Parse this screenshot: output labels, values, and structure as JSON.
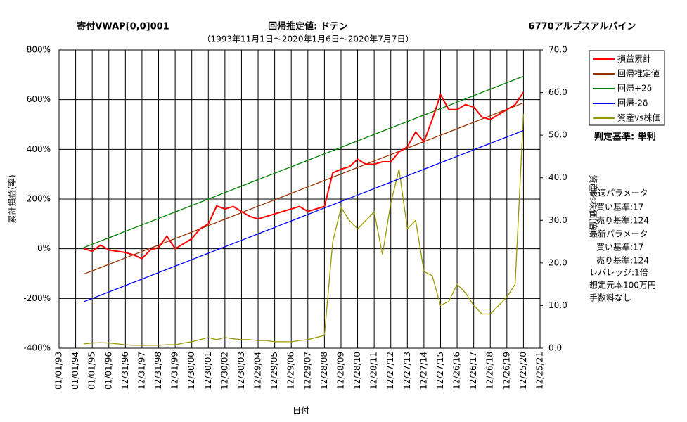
{
  "chart_data": {
    "type": "line",
    "title": "寄付VWAP[0,0]001",
    "subtitle": "回帰推定値: ドテン",
    "stock": "6770アルプスアルパイン",
    "period": "（1993年11月1日～2020年1月6日～2020年7月7日）",
    "x_label": "日付",
    "y_label": "累計損益(率)",
    "y2_label": "資産vs株価(倍)",
    "notes": [
      "判定基準: 単利",
      "最適パラメータ",
      "買い基準:17",
      "売り基準:124",
      "最新パラメータ",
      "買い基準:17",
      "売り基準:124",
      "レバレッジ:1倍",
      "想定元本100万円",
      "手数料なし"
    ],
    "categories": [
      "01/01/93",
      null,
      "01/01/94",
      null,
      "01/01/95",
      null,
      "01/01/96",
      null,
      "12/31/96",
      null,
      "12/31/97",
      null,
      "12/31/98",
      null,
      "12/31/99",
      null,
      "12/30/00",
      null,
      "12/30/01",
      null,
      "12/30/02",
      null,
      "12/30/03",
      null,
      "12/29/04",
      null,
      "12/29/05",
      null,
      "12/29/06",
      null,
      "12/29/07",
      null,
      "12/28/08",
      null,
      "12/28/09",
      null,
      "12/28/10",
      null,
      "12/28/11",
      null,
      "12/27/12",
      null,
      "12/27/13",
      null,
      "12/27/14",
      null,
      "12/27/15",
      null,
      "12/26/16",
      null,
      "12/26/17",
      null,
      "12/26/18",
      null,
      "12/26/19",
      null,
      "12/25/20",
      null,
      "12/25/21"
    ],
    "ylim": [
      -400,
      800
    ],
    "yticks": [
      {
        "value": -400,
        "label": "-400%"
      },
      {
        "value": -200,
        "label": "-200%"
      },
      {
        "value": 0,
        "label": "0%"
      },
      {
        "value": 200,
        "label": "200%"
      },
      {
        "value": 400,
        "label": "400%"
      },
      {
        "value": 600,
        "label": "600%"
      },
      {
        "value": 800,
        "label": "800%"
      }
    ],
    "y2lim": [
      0,
      70
    ],
    "y2ticks": [
      {
        "value": 0,
        "label": "0.0"
      },
      {
        "value": 10,
        "label": "10.0"
      },
      {
        "value": 20,
        "label": "20.0"
      },
      {
        "value": 30,
        "label": "30.0"
      },
      {
        "value": 40,
        "label": "40.0"
      },
      {
        "value": 50,
        "label": "50.0"
      },
      {
        "value": 60,
        "label": "60.0"
      },
      {
        "value": 70,
        "label": "70.0"
      }
    ],
    "grid": true,
    "series": [
      {
        "name": "損益累計",
        "color": "#ff0000",
        "values": [
          null,
          null,
          null,
          0,
          -10,
          15,
          -5,
          -10,
          -15,
          -25,
          -40,
          -5,
          5,
          50,
          0,
          20,
          40,
          80,
          100,
          172,
          160,
          170,
          150,
          130,
          120,
          130,
          140,
          150,
          160,
          170,
          150,
          160,
          170,
          305,
          320,
          330,
          360,
          340,
          340,
          350,
          350,
          390,
          410,
          470,
          430,
          520,
          620,
          560,
          560,
          580,
          570,
          530,
          520,
          540,
          560,
          580,
          630,
          null,
          null
        ]
      },
      {
        "name": "回帰推定値",
        "color": "#993300",
        "values": [
          null,
          null,
          null,
          -102,
          -89,
          -76,
          -63,
          -50,
          -37,
          -24,
          -11,
          2,
          15,
          28,
          41,
          54,
          67,
          80,
          93,
          106,
          119,
          132,
          145,
          158,
          171,
          184,
          197,
          210,
          223,
          236,
          249,
          262,
          275,
          288,
          301,
          314,
          327,
          340,
          353,
          366,
          379,
          392,
          405,
          418,
          431,
          444,
          457,
          470,
          483,
          496,
          509,
          522,
          535,
          548,
          561,
          574,
          587,
          null,
          null
        ]
      },
      {
        "name": "回帰+2δ",
        "color": "#008000",
        "values": [
          null,
          null,
          null,
          5,
          18,
          31,
          44,
          57,
          70,
          83,
          96,
          109,
          122,
          135,
          148,
          161,
          174,
          187,
          200,
          213,
          226,
          239,
          252,
          265,
          278,
          291,
          304,
          317,
          330,
          343,
          356,
          369,
          382,
          395,
          408,
          421,
          434,
          447,
          460,
          473,
          486,
          499,
          512,
          525,
          538,
          551,
          564,
          577,
          590,
          603,
          616,
          629,
          642,
          655,
          668,
          681,
          694,
          null,
          null
        ]
      },
      {
        "name": "回帰-2δ",
        "color": "#0000ff",
        "values": [
          null,
          null,
          null,
          -213,
          -200,
          -187,
          -174,
          -161,
          -148,
          -135,
          -122,
          -109,
          -96,
          -83,
          -70,
          -57,
          -44,
          -31,
          -18,
          -5,
          8,
          21,
          34,
          47,
          60,
          73,
          86,
          99,
          112,
          125,
          138,
          151,
          164,
          177,
          190,
          203,
          216,
          229,
          242,
          255,
          268,
          281,
          294,
          307,
          320,
          333,
          346,
          359,
          372,
          385,
          398,
          411,
          424,
          437,
          450,
          463,
          476,
          null,
          null
        ]
      },
      {
        "name": "資産vs株価",
        "color": "#999900",
        "axis": "y2",
        "values": [
          null,
          null,
          null,
          1,
          1.2,
          1.3,
          1.2,
          1,
          0.8,
          0.7,
          0.7,
          0.7,
          0.7,
          0.8,
          0.8,
          1.2,
          1.5,
          2,
          2.5,
          2,
          2.5,
          2.2,
          2,
          2,
          1.8,
          1.8,
          1.5,
          1.5,
          1.5,
          1.8,
          2,
          2.5,
          3,
          25,
          33,
          30,
          28,
          30,
          32,
          22,
          34,
          42,
          28,
          30,
          18,
          17,
          10,
          11,
          15,
          13,
          10,
          8,
          8,
          10,
          12,
          15,
          55,
          null,
          null
        ]
      }
    ]
  }
}
